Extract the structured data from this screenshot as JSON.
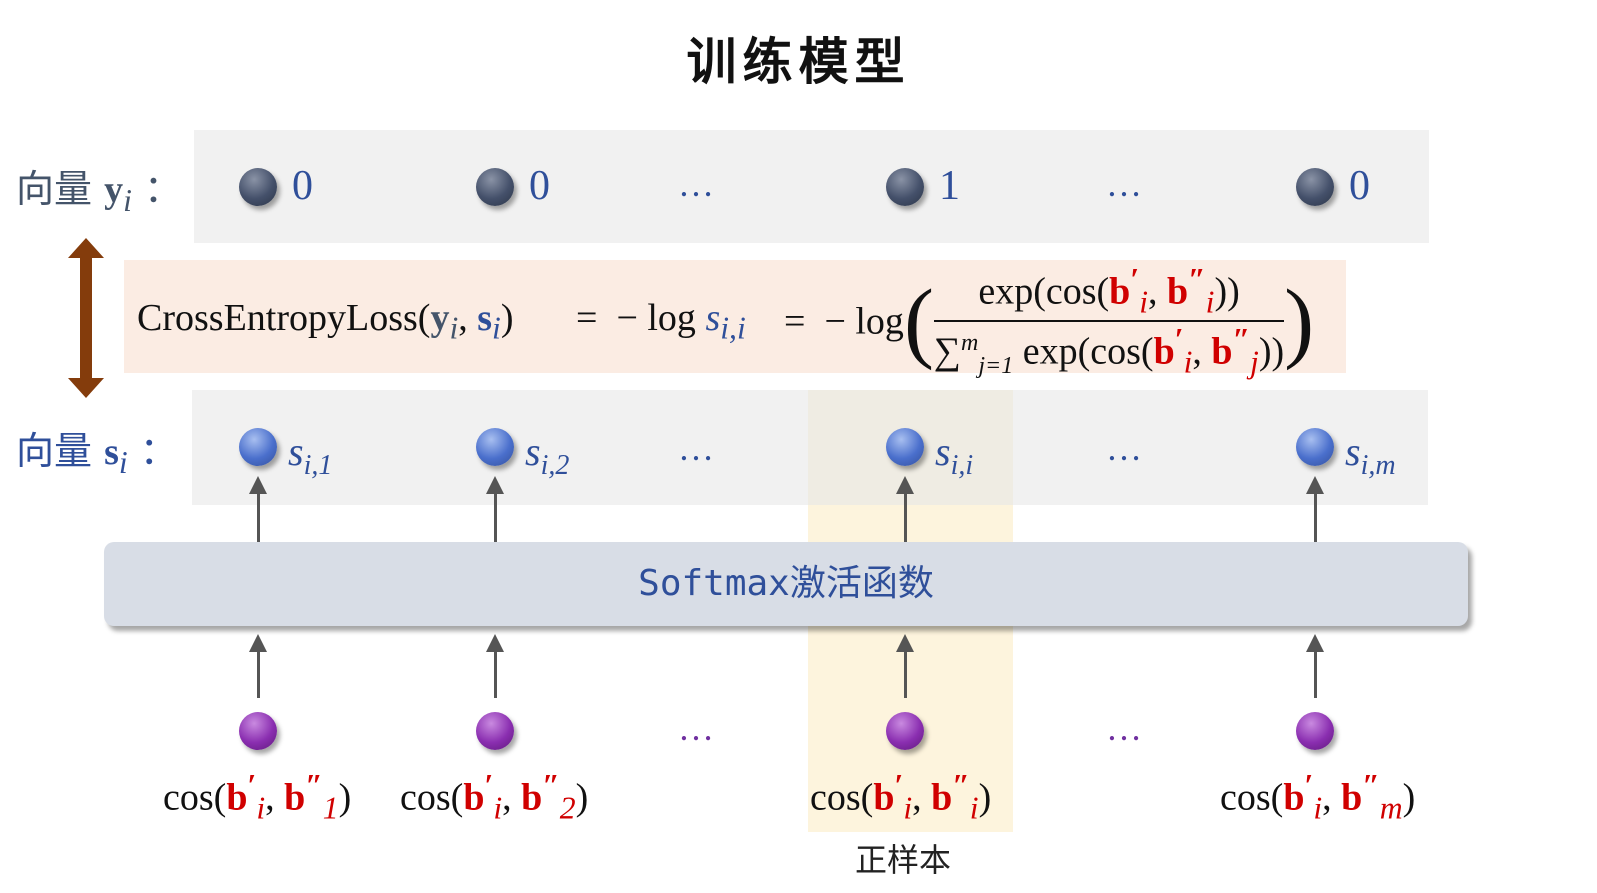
{
  "title": "训练模型",
  "row_y": {
    "label": "向量",
    "symbol": "y",
    "sub": "i",
    "colon": "：",
    "values": [
      "0",
      "0",
      "…",
      "1",
      "…",
      "0"
    ]
  },
  "row_s": {
    "label": "向量",
    "symbol": "s",
    "sub": "i",
    "colon": "：",
    "values": [
      {
        "base": "s",
        "sub": "i,1"
      },
      {
        "base": "s",
        "sub": "i,2"
      },
      "…",
      {
        "base": "s",
        "sub": "i,i"
      },
      "…",
      {
        "base": "s",
        "sub": "i,m"
      }
    ]
  },
  "formula": {
    "lhs": "CrossEntropyLoss",
    "args": [
      "y",
      "s"
    ],
    "arg_sub": "i",
    "eq": "=",
    "mid": "− log",
    "mid_var": "s",
    "mid_sub": "i,i",
    "rhs_prefix": "− log",
    "numerator": "exp(cos(b′ᵢ, b″ᵢ))",
    "numerator_parts": {
      "pre": "exp(cos(",
      "a": "b",
      "a_sup": "′",
      "a_sub": "i",
      "b": "b",
      "b_sup": "″",
      "b_sub": "i",
      "post": "))"
    },
    "denominator_parts": {
      "sum": "∑",
      "sum_sup": "m",
      "sum_sub": "j=1",
      "pre": "exp(cos(",
      "a": "b",
      "a_sup": "′",
      "a_sub": "i",
      "b": "b",
      "b_sup": "″",
      "b_sub": "j",
      "post": "))"
    }
  },
  "softmax_label": "Softmax激活函数",
  "inputs": [
    {
      "sub": "1"
    },
    {
      "sub": "2"
    },
    "…",
    {
      "sub": "i"
    },
    "…",
    {
      "sub": "m"
    }
  ],
  "cos_prefix": "cos(",
  "cos_suffix": ")",
  "ellipsis": "…",
  "positive_label": "正样本",
  "colors": {
    "arrow": "#843c0c",
    "blue": "#2f4f9a",
    "red": "#d00000",
    "highlight": "#fdf4dd",
    "formula_bg": "#fbece3"
  }
}
